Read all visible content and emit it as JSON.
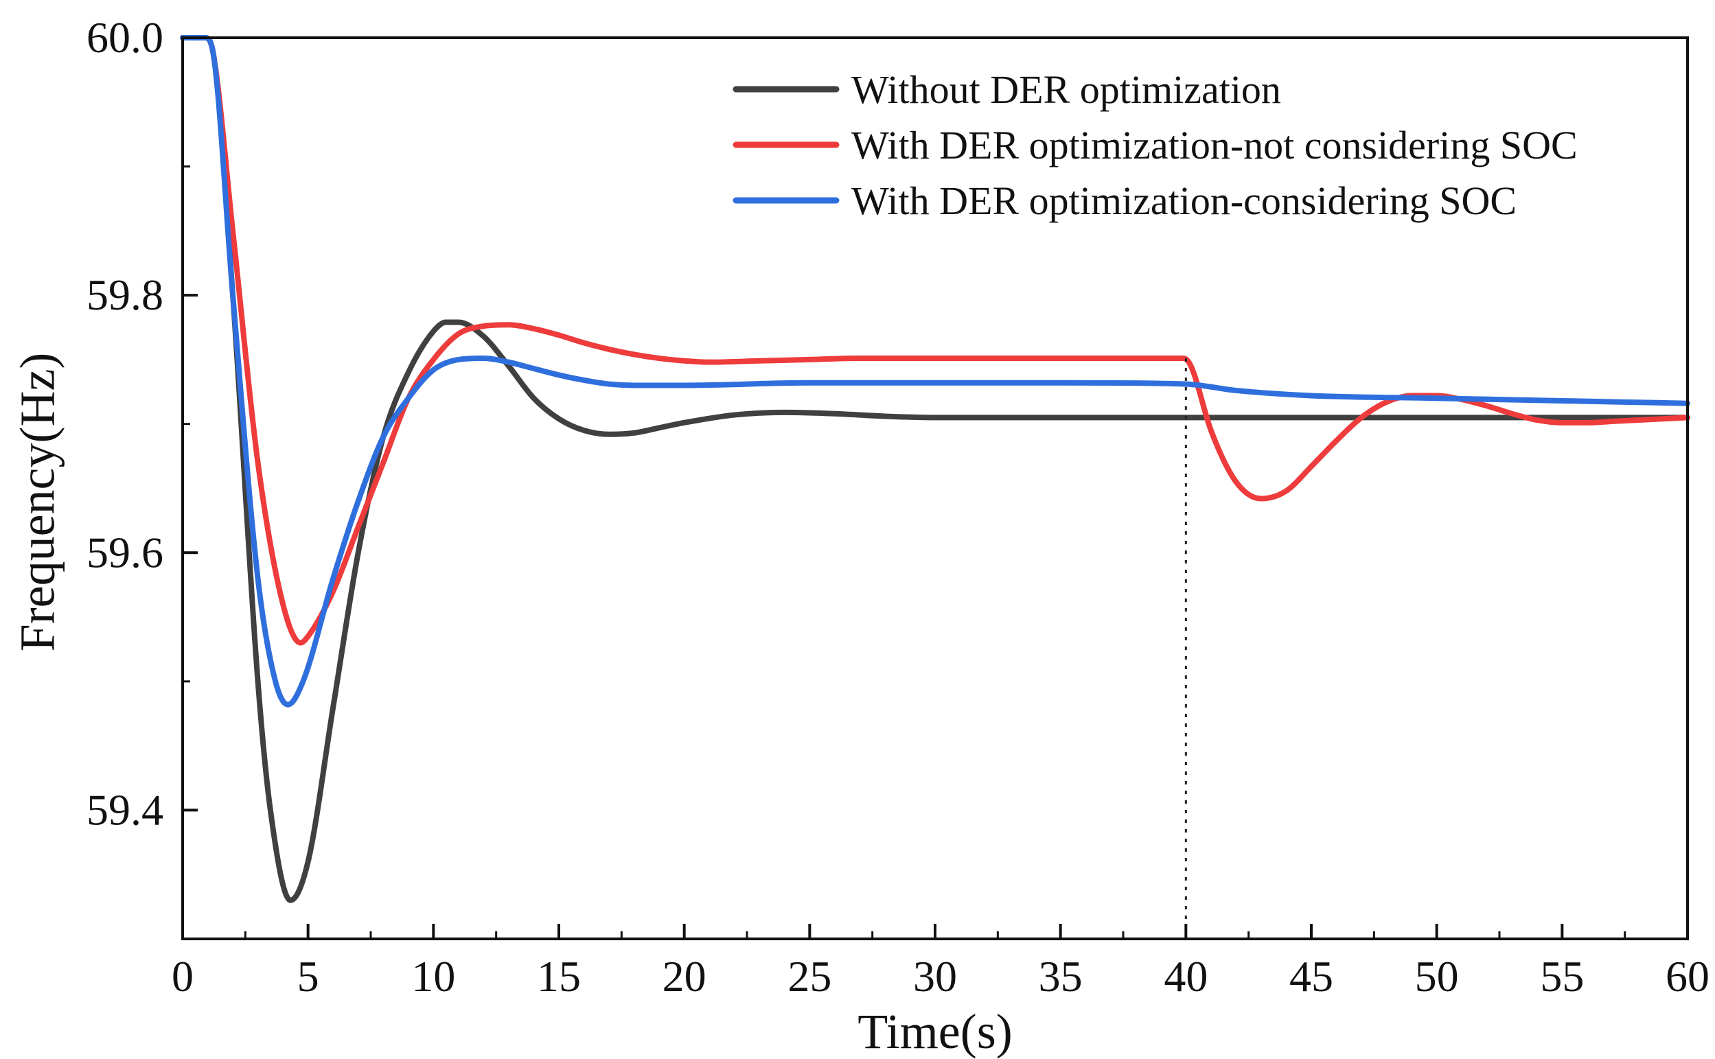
{
  "chart_data": {
    "type": "line",
    "title": "",
    "xlabel": "Time(s)",
    "ylabel": "Frequency(Hz)",
    "xlim": [
      0,
      60
    ],
    "ylim": [
      59.3,
      60.0
    ],
    "x_ticks": [
      "0",
      "5",
      "10",
      "15",
      "20",
      "25",
      "30",
      "35",
      "40",
      "45",
      "50",
      "55",
      "60"
    ],
    "y_ticks": [
      "59.4",
      "59.6",
      "59.8",
      "60.0"
    ],
    "grid": false,
    "legend_position": "top-right",
    "vertical_marker_x": 40,
    "series": [
      {
        "name": "Without DER optimization",
        "color": "#404040",
        "x": [
          0,
          0.9,
          1.2,
          2,
          3,
          3.5,
          4.3,
          5,
          6,
          7,
          8,
          9,
          10,
          10.5,
          11,
          12,
          13,
          14,
          15,
          16,
          17,
          18,
          19,
          20,
          22,
          24,
          26,
          28,
          30,
          35,
          40,
          45,
          50,
          55,
          60
        ],
        "y": [
          60.0,
          60.0,
          59.99,
          59.8,
          59.5,
          59.4,
          59.33,
          59.36,
          59.48,
          59.6,
          59.69,
          59.74,
          59.772,
          59.779,
          59.779,
          59.768,
          59.745,
          59.72,
          59.704,
          59.695,
          59.692,
          59.693,
          59.697,
          59.701,
          59.707,
          59.709,
          59.708,
          59.706,
          59.705,
          59.705,
          59.705,
          59.705,
          59.705,
          59.705,
          59.705
        ]
      },
      {
        "name": "With DER optimization-not considering SOC",
        "color": "#ee3b3b",
        "x": [
          0,
          0.9,
          1.2,
          2,
          3,
          4,
          4.7,
          5,
          6,
          7,
          8,
          9,
          10,
          11,
          12,
          13,
          14,
          15,
          16,
          17,
          18,
          19,
          20,
          21,
          23,
          25,
          27,
          30,
          35,
          39.9,
          40.2,
          41,
          42,
          43,
          44,
          45,
          46,
          47,
          48,
          49,
          50,
          51,
          52,
          53,
          54,
          55,
          56,
          57,
          58,
          59,
          60
        ],
        "y": [
          60.0,
          60.0,
          59.99,
          59.85,
          59.67,
          59.56,
          59.53,
          59.535,
          59.57,
          59.62,
          59.67,
          59.72,
          59.75,
          59.77,
          59.776,
          59.777,
          59.774,
          59.769,
          59.763,
          59.758,
          59.754,
          59.751,
          59.749,
          59.748,
          59.749,
          59.75,
          59.751,
          59.751,
          59.751,
          59.751,
          59.745,
          59.695,
          59.655,
          59.642,
          59.648,
          59.667,
          59.687,
          59.705,
          59.717,
          59.722,
          59.722,
          59.719,
          59.714,
          59.708,
          59.703,
          59.701,
          59.701,
          59.702,
          59.703,
          59.704,
          59.705
        ]
      },
      {
        "name": "With DER optimization-considering SOC",
        "color": "#2f6fdd",
        "x": [
          0,
          0.9,
          1.2,
          2,
          3,
          3.7,
          4.2,
          4.8,
          6,
          7,
          8,
          9,
          10,
          11,
          12,
          13,
          14,
          15,
          16,
          17,
          18,
          20,
          25,
          30,
          35,
          40,
          42,
          45,
          50,
          55,
          60
        ],
        "y": [
          60.0,
          60.0,
          59.99,
          59.8,
          59.58,
          59.5,
          59.482,
          59.5,
          59.58,
          59.64,
          59.69,
          59.72,
          59.742,
          59.75,
          59.751,
          59.748,
          59.743,
          59.738,
          59.734,
          59.731,
          59.73,
          59.73,
          59.732,
          59.732,
          59.732,
          59.731,
          59.726,
          59.722,
          59.72,
          59.718,
          59.716
        ]
      }
    ]
  }
}
